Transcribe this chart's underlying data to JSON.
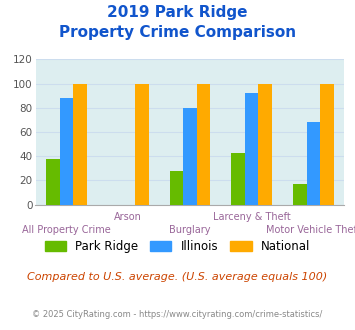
{
  "title_line1": "2019 Park Ridge",
  "title_line2": "Property Crime Comparison",
  "categories": [
    "All Property Crime",
    "Arson",
    "Burglary",
    "Larceny & Theft",
    "Motor Vehicle Theft"
  ],
  "series": {
    "Park Ridge": [
      38,
      0,
      28,
      43,
      17
    ],
    "Illinois": [
      88,
      0,
      80,
      92,
      68
    ],
    "National": [
      100,
      100,
      100,
      100,
      100
    ]
  },
  "colors": {
    "Park Ridge": "#66bb00",
    "Illinois": "#3399ff",
    "National": "#ffaa00"
  },
  "ylim": [
    0,
    120
  ],
  "yticks": [
    0,
    20,
    40,
    60,
    80,
    100,
    120
  ],
  "grid_color": "#ccddee",
  "bg_color": "#ddeef0",
  "title_color": "#1155cc",
  "xlabel_color": "#996699",
  "legend_fontsize": 8.5,
  "footer_text": "Compared to U.S. average. (U.S. average equals 100)",
  "copyright_text": "© 2025 CityRating.com - https://www.cityrating.com/crime-statistics/",
  "footer_color": "#cc4400",
  "copyright_color": "#888888"
}
